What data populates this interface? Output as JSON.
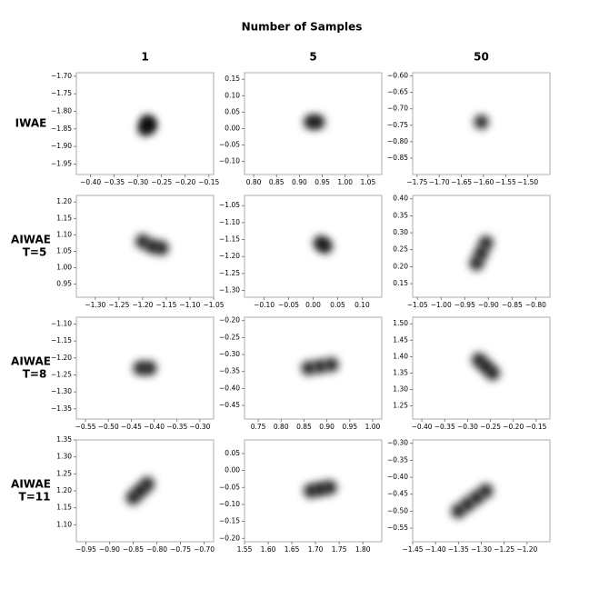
{
  "figure": {
    "title": "Number of Samples",
    "columns": [
      "1",
      "5",
      "50"
    ],
    "rows": [
      [
        "IWAE"
      ],
      [
        "AIWAE",
        "T=5"
      ],
      [
        "AIWAE",
        "T=8"
      ],
      [
        "AIWAE",
        "T=11"
      ]
    ]
  },
  "chart_data": [
    {
      "type": "density",
      "xlim": [
        -0.43,
        -0.14
      ],
      "ylim": [
        -1.98,
        -1.69
      ],
      "xticks": [
        {
          "value": -0.4,
          "label": "−0.40"
        },
        {
          "value": -0.35,
          "label": "−0.35"
        },
        {
          "value": -0.3,
          "label": "−0.30"
        },
        {
          "value": -0.25,
          "label": "−0.25"
        },
        {
          "value": -0.2,
          "label": "−0.20"
        },
        {
          "value": -0.15,
          "label": "−0.15"
        }
      ],
      "yticks": [
        {
          "value": -1.7,
          "label": "−1.70"
        },
        {
          "value": -1.75,
          "label": "−1.75"
        },
        {
          "value": -1.8,
          "label": "−1.80"
        },
        {
          "value": -1.85,
          "label": "−1.85"
        },
        {
          "value": -1.9,
          "label": "−1.90"
        },
        {
          "value": -1.95,
          "label": "−1.95"
        }
      ],
      "x": [
        -0.285,
        -0.28,
        -0.275
      ],
      "y": [
        -1.85,
        -1.83,
        -1.84
      ]
    },
    {
      "type": "density",
      "xlim": [
        0.78,
        1.08
      ],
      "ylim": [
        -0.14,
        0.17
      ],
      "xticks": [
        {
          "value": 0.8,
          "label": "0.80"
        },
        0.85,
        {
          "value": 0.9,
          "label": "0.90"
        },
        0.95,
        {
          "value": 1,
          "label": "1.00"
        },
        1.05
      ],
      "yticks": [
        0.15,
        {
          "value": 0.1,
          "label": "0.10"
        },
        0.05,
        {
          "value": 0,
          "label": "0.00"
        },
        {
          "value": -0.05,
          "label": "−0.05"
        },
        {
          "value": -0.1,
          "label": "−0.10"
        }
      ],
      "x": [
        0.925,
        0.94
      ],
      "y": [
        0.02,
        0.02
      ]
    },
    {
      "type": "density",
      "xlim": [
        -1.76,
        -1.45
      ],
      "ylim": [
        -0.9,
        -0.59
      ],
      "xticks": [
        {
          "value": -1.75,
          "label": "−1.75"
        },
        {
          "value": -1.7,
          "label": "−1.70"
        },
        {
          "value": -1.65,
          "label": "−1.65"
        },
        {
          "value": -1.6,
          "label": "−1.60"
        },
        {
          "value": -1.55,
          "label": "−1.55"
        },
        {
          "value": -1.5,
          "label": "−1.50"
        }
      ],
      "yticks": [
        {
          "value": -0.6,
          "label": "−0.60"
        },
        {
          "value": -0.65,
          "label": "−0.65"
        },
        {
          "value": -0.7,
          "label": "−0.70"
        },
        {
          "value": -0.75,
          "label": "−0.75"
        },
        {
          "value": -0.8,
          "label": "−0.80"
        },
        {
          "value": -0.85,
          "label": "−0.85"
        }
      ],
      "x": [
        -1.605
      ],
      "y": [
        -0.74
      ]
    },
    {
      "type": "density",
      "xlim": [
        -1.34,
        -1.05
      ],
      "ylim": [
        0.91,
        1.22
      ],
      "xticks": [
        {
          "value": -1.3,
          "label": "−1.30"
        },
        {
          "value": -1.25,
          "label": "−1.25"
        },
        {
          "value": -1.2,
          "label": "−1.20"
        },
        {
          "value": -1.15,
          "label": "−1.15"
        },
        {
          "value": -1.1,
          "label": "−1.10"
        },
        {
          "value": -1.05,
          "label": "−1.05"
        }
      ],
      "yticks": [
        {
          "value": 1.2,
          "label": "1.20"
        },
        1.15,
        {
          "value": 1.1,
          "label": "1.10"
        },
        1.05,
        {
          "value": 1,
          "label": "1.00"
        },
        0.95
      ],
      "x": [
        -1.2,
        -1.18,
        -1.16
      ],
      "y": [
        1.08,
        1.065,
        1.06
      ]
    },
    {
      "type": "density",
      "xlim": [
        -0.14,
        0.14
      ],
      "ylim": [
        -1.32,
        -1.02
      ],
      "xticks": [
        {
          "value": -0.1,
          "label": "−0.10"
        },
        {
          "value": -0.05,
          "label": "−0.05"
        },
        {
          "value": 0,
          "label": "0.00"
        },
        0.05,
        {
          "value": 0.1,
          "label": "0.10"
        }
      ],
      "yticks": [
        {
          "value": -1.05,
          "label": "−1.05"
        },
        {
          "value": -1.1,
          "label": "−1.10"
        },
        {
          "value": -1.15,
          "label": "−1.15"
        },
        {
          "value": -1.2,
          "label": "−1.20"
        },
        {
          "value": -1.25,
          "label": "−1.25"
        },
        {
          "value": -1.3,
          "label": "−1.30"
        }
      ],
      "x": [
        0.015,
        0.025
      ],
      "y": [
        -1.16,
        -1.17
      ]
    },
    {
      "type": "density",
      "xlim": [
        -1.06,
        -0.77
      ],
      "ylim": [
        0.11,
        0.41
      ],
      "xticks": [
        {
          "value": -1.05,
          "label": "−1.05"
        },
        {
          "value": -1,
          "label": "−1.00"
        },
        {
          "value": -0.95,
          "label": "−0.95"
        },
        {
          "value": -0.9,
          "label": "−0.90"
        },
        {
          "value": -0.85,
          "label": "−0.85"
        },
        {
          "value": -0.8,
          "label": "−0.80"
        }
      ],
      "yticks": [
        {
          "value": 0.4,
          "label": "0.40"
        },
        0.35,
        {
          "value": 0.3,
          "label": "0.30"
        },
        0.25,
        {
          "value": 0.2,
          "label": "0.20"
        },
        0.15
      ],
      "x": [
        -0.905,
        -0.915,
        -0.925
      ],
      "y": [
        0.27,
        0.24,
        0.21
      ]
    },
    {
      "type": "density",
      "xlim": [
        -0.57,
        -0.27
      ],
      "ylim": [
        -1.38,
        -1.08
      ],
      "xticks": [
        {
          "value": -0.55,
          "label": "−0.55"
        },
        {
          "value": -0.5,
          "label": "−0.50"
        },
        {
          "value": -0.45,
          "label": "−0.45"
        },
        {
          "value": -0.4,
          "label": "−0.40"
        },
        {
          "value": -0.35,
          "label": "−0.35"
        },
        {
          "value": -0.3,
          "label": "−0.30"
        }
      ],
      "yticks": [
        {
          "value": -1.1,
          "label": "−1.10"
        },
        {
          "value": -1.15,
          "label": "−1.15"
        },
        {
          "value": -1.2,
          "label": "−1.20"
        },
        {
          "value": -1.25,
          "label": "−1.25"
        },
        {
          "value": -1.3,
          "label": "−1.30"
        },
        {
          "value": -1.35,
          "label": "−1.35"
        }
      ],
      "x": [
        -0.43,
        -0.41
      ],
      "y": [
        -1.23,
        -1.23
      ]
    },
    {
      "type": "density",
      "xlim": [
        0.72,
        1.02
      ],
      "ylim": [
        -0.49,
        -0.19
      ],
      "xticks": [
        0.75,
        {
          "value": 0.8,
          "label": "0.80"
        },
        0.85,
        {
          "value": 0.9,
          "label": "0.90"
        },
        0.95,
        {
          "value": 1,
          "label": "1.00"
        }
      ],
      "yticks": [
        {
          "value": -0.2,
          "label": "−0.20"
        },
        {
          "value": -0.25,
          "label": "−0.25"
        },
        {
          "value": -0.3,
          "label": "−0.30"
        },
        {
          "value": -0.35,
          "label": "−0.35"
        },
        {
          "value": -0.4,
          "label": "−0.40"
        },
        {
          "value": -0.45,
          "label": "−0.45"
        }
      ],
      "x": [
        0.86,
        0.885,
        0.91
      ],
      "y": [
        -0.34,
        -0.335,
        -0.33
      ]
    },
    {
      "type": "density",
      "xlim": [
        -0.42,
        -0.12
      ],
      "ylim": [
        1.21,
        1.52
      ],
      "xticks": [
        {
          "value": -0.4,
          "label": "−0.40"
        },
        {
          "value": -0.35,
          "label": "−0.35"
        },
        {
          "value": -0.3,
          "label": "−0.30"
        },
        {
          "value": -0.25,
          "label": "−0.25"
        },
        {
          "value": -0.2,
          "label": "−0.20"
        },
        {
          "value": -0.15,
          "label": "−0.15"
        }
      ],
      "yticks": [
        {
          "value": 1.5,
          "label": "1.50"
        },
        1.45,
        {
          "value": 1.4,
          "label": "1.40"
        },
        1.35,
        {
          "value": 1.3,
          "label": "1.30"
        },
        1.25
      ],
      "x": [
        -0.275,
        -0.26,
        -0.245
      ],
      "y": [
        1.39,
        1.37,
        1.35
      ]
    },
    {
      "type": "density",
      "xlim": [
        -0.97,
        -0.68
      ],
      "ylim": [
        1.05,
        1.35
      ],
      "xticks": [
        {
          "value": -0.95,
          "label": "−0.95"
        },
        {
          "value": -0.9,
          "label": "−0.90"
        },
        {
          "value": -0.85,
          "label": "−0.85"
        },
        {
          "value": -0.8,
          "label": "−0.80"
        },
        {
          "value": -0.75,
          "label": "−0.75"
        },
        {
          "value": -0.7,
          "label": "−0.70"
        }
      ],
      "yticks": [
        1.35,
        {
          "value": 1.3,
          "label": "1.30"
        },
        1.25,
        {
          "value": 1.2,
          "label": "1.20"
        },
        1.15,
        {
          "value": 1.1,
          "label": "1.10"
        }
      ],
      "x": [
        -0.85,
        -0.835,
        -0.82
      ],
      "y": [
        1.18,
        1.2,
        1.22
      ]
    },
    {
      "type": "density",
      "xlim": [
        1.55,
        1.84
      ],
      "ylim": [
        -0.21,
        0.09
      ],
      "xticks": [
        1.55,
        {
          "value": 1.6,
          "label": "1.60"
        },
        1.65,
        {
          "value": 1.7,
          "label": "1.70"
        },
        1.75,
        {
          "value": 1.8,
          "label": "1.80"
        }
      ],
      "yticks": [
        0.05,
        {
          "value": 0,
          "label": "0.00"
        },
        {
          "value": -0.05,
          "label": "−0.05"
        },
        {
          "value": -0.1,
          "label": "−0.10"
        },
        {
          "value": -0.15,
          "label": "−0.15"
        },
        {
          "value": -0.2,
          "label": "−0.20"
        }
      ],
      "x": [
        1.69,
        1.71,
        1.73
      ],
      "y": [
        -0.06,
        -0.055,
        -0.05
      ]
    },
    {
      "type": "density",
      "xlim": [
        -1.45,
        -1.15
      ],
      "ylim": [
        -0.59,
        -0.29
      ],
      "xticks": [
        {
          "value": -1.45,
          "label": "−1.45"
        },
        {
          "value": -1.4,
          "label": "−1.40"
        },
        {
          "value": -1.35,
          "label": "−1.35"
        },
        {
          "value": -1.3,
          "label": "−1.30"
        },
        {
          "value": -1.25,
          "label": "−1.25"
        },
        {
          "value": -1.2,
          "label": "−1.20"
        }
      ],
      "yticks": [
        {
          "value": -0.3,
          "label": "−0.30"
        },
        {
          "value": -0.35,
          "label": "−0.35"
        },
        {
          "value": -0.4,
          "label": "−0.40"
        },
        {
          "value": -0.45,
          "label": "−0.45"
        },
        {
          "value": -0.5,
          "label": "−0.50"
        },
        {
          "value": -0.55,
          "label": "−0.55"
        }
      ],
      "x": [
        -1.35,
        -1.33,
        -1.31,
        -1.29
      ],
      "y": [
        -0.5,
        -0.48,
        -0.46,
        -0.44
      ]
    }
  ]
}
